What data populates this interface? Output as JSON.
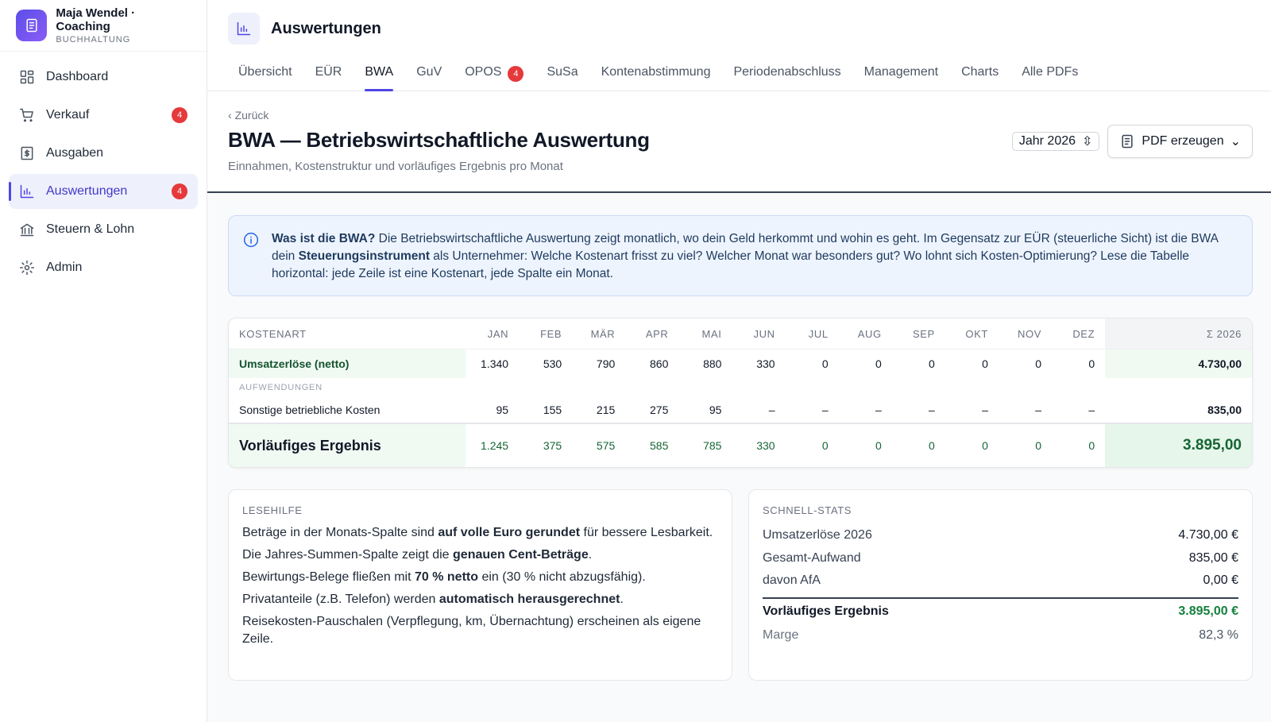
{
  "brand": {
    "name": "Maja Wendel · Coaching",
    "subtitle": "BUCHHALTUNG"
  },
  "nav": [
    {
      "label": "Dashboard",
      "icon": "grid"
    },
    {
      "label": "Verkauf",
      "badge": "4",
      "icon": "cart"
    },
    {
      "label": "Ausgaben",
      "icon": "receipt"
    },
    {
      "label": "Auswertungen",
      "badge": "4",
      "active": true,
      "icon": "chart"
    },
    {
      "label": "Steuern & Lohn",
      "icon": "bank"
    },
    {
      "label": "Admin",
      "icon": "gear"
    }
  ],
  "page": {
    "title": "Auswertungen"
  },
  "tabs": [
    {
      "label": "Übersicht"
    },
    {
      "label": "EÜR"
    },
    {
      "label": "BWA",
      "active": true
    },
    {
      "label": "GuV"
    },
    {
      "label": "OPOS",
      "badge": "4"
    },
    {
      "label": "SuSa"
    },
    {
      "label": "Kontenabstimmung"
    },
    {
      "label": "Periodenabschluss"
    },
    {
      "label": "Management"
    },
    {
      "label": "Charts"
    },
    {
      "label": "Alle PDFs"
    }
  ],
  "back": "Zurück",
  "heading": "BWA — Betriebswirtschaftliche Auswertung",
  "subheading": "Einnahmen, Kostenstruktur und vorläufiges Ergebnis pro Monat",
  "year_select": "Jahr 2026",
  "pdf_button": "PDF erzeugen",
  "info": {
    "parts": [
      {
        "t": "Was ist die BWA?",
        "b": true
      },
      {
        "t": " Die Betriebswirtschaftliche Auswertung zeigt monatlich, wo dein Geld herkommt und wohin es geht. Im Gegensatz zur EÜR (steuerliche Sicht) ist die BWA dein "
      },
      {
        "t": "Steuerungsinstrument",
        "b": true
      },
      {
        "t": " als Unternehmer: Welche Kostenart frisst zu viel? Welcher Monat war besonders gut? Wo lohnt sich Kosten-Optimierung? Lese die Tabelle horizontal: jede Zeile ist eine Kostenart, jede Spalte ein Monat."
      }
    ]
  },
  "table": {
    "columns": [
      "KOSTENART",
      "JAN",
      "FEB",
      "MÄR",
      "APR",
      "MAI",
      "JUN",
      "JUL",
      "AUG",
      "SEP",
      "OKT",
      "NOV",
      "DEZ",
      "Σ 2026"
    ],
    "rows": [
      {
        "kind": "revenue",
        "cells": [
          "Umsatzerlöse (netto)",
          "1.340",
          "530",
          "790",
          "860",
          "880",
          "330",
          "0",
          "0",
          "0",
          "0",
          "0",
          "0",
          "4.730,00"
        ]
      },
      {
        "kind": "section",
        "cells": [
          "AUFWENDUNGEN"
        ]
      },
      {
        "kind": "cost",
        "cells": [
          "Sonstige betriebliche Kosten",
          "95",
          "155",
          "215",
          "275",
          "95",
          "–",
          "–",
          "–",
          "–",
          "–",
          "–",
          "–",
          "835,00"
        ]
      },
      {
        "kind": "result",
        "cells": [
          "Vorläufiges Ergebnis",
          "1.245",
          "375",
          "575",
          "585",
          "785",
          "330",
          "0",
          "0",
          "0",
          "0",
          "0",
          "0",
          "3.895,00"
        ]
      }
    ]
  },
  "reading_help": {
    "title": "LESEHILFE",
    "items": [
      {
        "parts": [
          {
            "t": "Beträge in der Monats-Spalte sind "
          },
          {
            "t": "auf volle Euro gerundet",
            "b": true
          },
          {
            "t": " für bessere Lesbarkeit."
          }
        ]
      },
      {
        "parts": [
          {
            "t": "Die Jahres-Summen-Spalte zeigt die "
          },
          {
            "t": "genauen Cent-Beträge",
            "b": true
          },
          {
            "t": "."
          }
        ]
      },
      {
        "parts": [
          {
            "t": "Bewirtungs-Belege fließen mit "
          },
          {
            "t": "70 % netto",
            "b": true
          },
          {
            "t": " ein (30 % nicht abzugsfähig)."
          }
        ]
      },
      {
        "parts": [
          {
            "t": "Privatanteile (z.B. Telefon) werden "
          },
          {
            "t": "automatisch herausgerechnet",
            "b": true
          },
          {
            "t": "."
          }
        ]
      },
      {
        "parts": [
          {
            "t": "Reisekosten-Pauschalen (Verpflegung, km, Übernachtung) erscheinen als eigene Zeile."
          }
        ]
      }
    ]
  },
  "quick_stats": {
    "title": "SCHNELL-STATS",
    "rows": [
      {
        "label": "Umsatzerlöse 2026",
        "value": "4.730,00 €"
      },
      {
        "label": "Gesamt-Aufwand",
        "value": "835,00 €"
      },
      {
        "label": "davon AfA",
        "value": "0,00 €"
      },
      {
        "label": "Vorläufiges Ergebnis",
        "value": "3.895,00 €",
        "kind": "result"
      },
      {
        "label": "Marge",
        "value": "82,3 %",
        "kind": "muted"
      }
    ]
  }
}
